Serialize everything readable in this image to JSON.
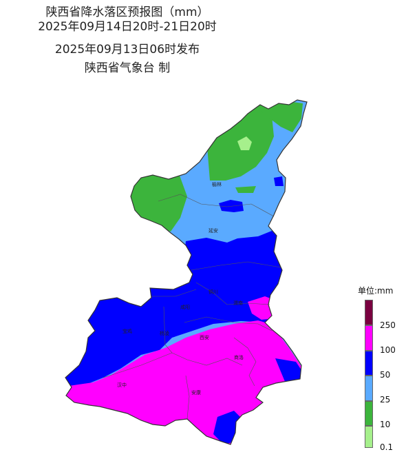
{
  "title": {
    "main": "陕西省降水落区预报图（mm）",
    "period": "2025年09月14日20时-21日20时",
    "issued": "2025年09月13日06时发布",
    "agency": "陕西省气象台 制"
  },
  "cities": [
    {
      "name": "榆林"
    },
    {
      "name": "延安"
    },
    {
      "name": "铜川"
    },
    {
      "name": "渭南"
    },
    {
      "name": "咸阳"
    },
    {
      "name": "宝鸡"
    },
    {
      "name": "杨凌"
    },
    {
      "name": "西安"
    },
    {
      "name": "商洛"
    },
    {
      "name": "汉中"
    },
    {
      "name": "安康"
    }
  ],
  "legend": {
    "title": "单位:mm",
    "levels": [
      {
        "color": "#7a0040"
      },
      {
        "label": "250",
        "color": "#ff00ff"
      },
      {
        "label": "100",
        "color": "#0000ff"
      },
      {
        "label": "50",
        "color": "#5aaaff"
      },
      {
        "label": "25",
        "color": "#3cb43c"
      },
      {
        "label": "10",
        "color": "#a6f08c"
      },
      {
        "label": "0.1"
      }
    ]
  },
  "colors": {
    "light_green": "#a6f08c",
    "green": "#3cb43c",
    "light_blue": "#5aaaff",
    "blue": "#0000ff",
    "magenta": "#ff00ff",
    "dark_purple": "#7a0040"
  }
}
